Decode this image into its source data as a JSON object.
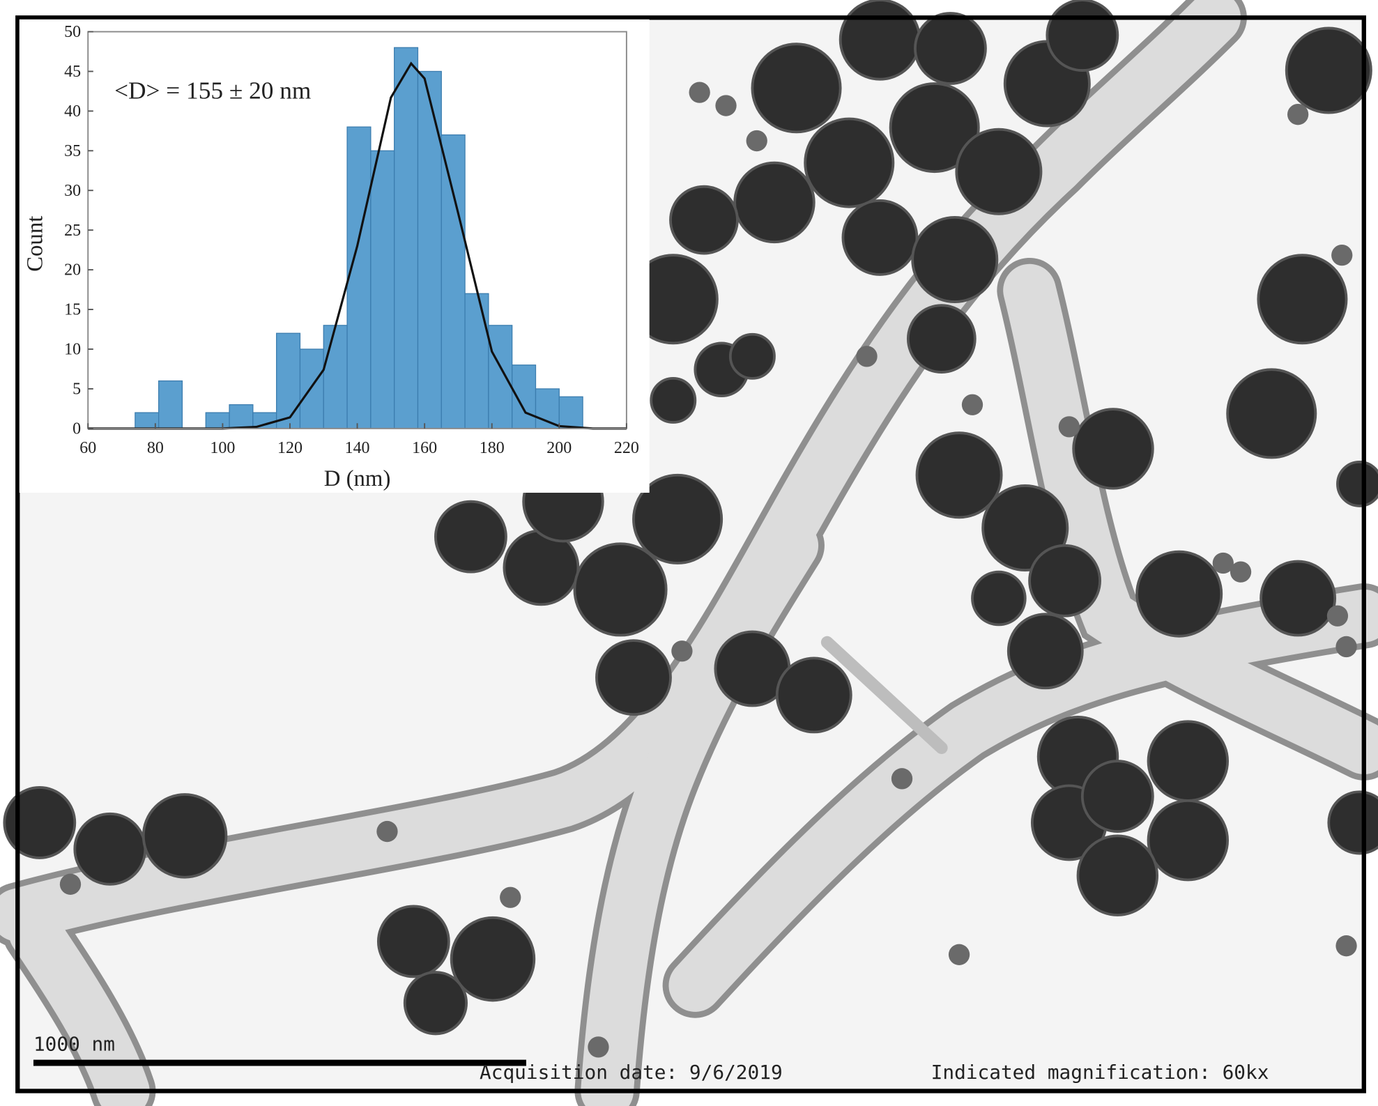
{
  "chart_data": {
    "type": "histogram",
    "annotation": "<D> = 155 ± 20 nm",
    "xlabel": "D (nm)",
    "ylabel": "Count",
    "bins": [
      74,
      81,
      88,
      95,
      102,
      109,
      116,
      123,
      130,
      137,
      144,
      151,
      158,
      165,
      172,
      179,
      186,
      193,
      200,
      207
    ],
    "counts": [
      2,
      6,
      0,
      2,
      3,
      2,
      12,
      10,
      13,
      38,
      35,
      48,
      45,
      37,
      17,
      13,
      8,
      5,
      4
    ],
    "color": "#5b9fcf",
    "fit": {
      "color": "#111111",
      "x": [
        60,
        70,
        80,
        90,
        100,
        110,
        120,
        130,
        140,
        150,
        156,
        160,
        170,
        180,
        190,
        200,
        210,
        220
      ],
      "y": [
        0,
        0,
        0,
        0,
        0,
        0.2,
        1.4,
        7.4,
        23,
        41.7,
        46,
        44.1,
        27.1,
        9.7,
        2,
        0.3,
        0,
        0
      ]
    },
    "xlim": [
      60,
      220
    ],
    "xticks": [
      60,
      80,
      100,
      120,
      140,
      160,
      180,
      200,
      220
    ],
    "ylim": [
      0,
      50
    ],
    "yticks": [
      0,
      5,
      10,
      15,
      20,
      25,
      30,
      35,
      40,
      45,
      50
    ]
  },
  "image": {
    "scale_bar": "1000 nm",
    "acquisition": "Acquisition date: 9/6/2019",
    "magnification": "Indicated magnification: 60kx"
  }
}
